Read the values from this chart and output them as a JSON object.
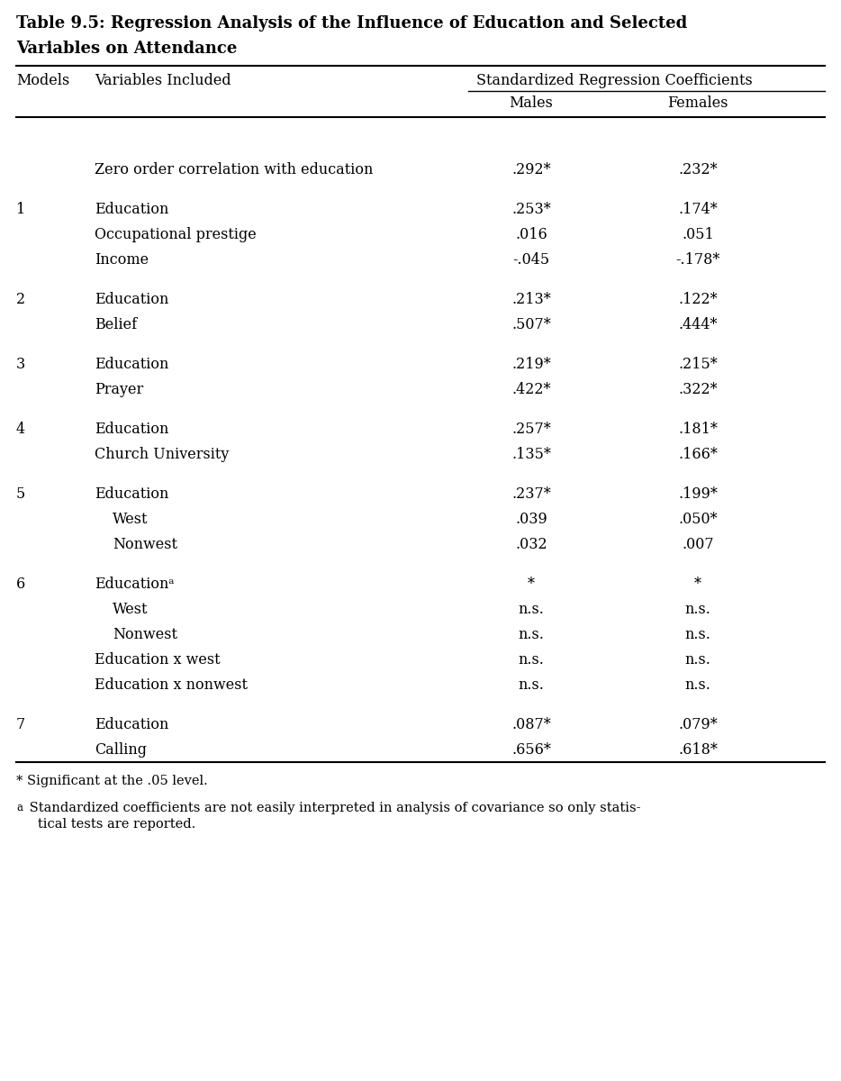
{
  "title_line1": "Table 9.5: Regression Analysis of the Influence of Education and Selected",
  "title_line2": "Variables on Attendance",
  "span_header": "Standardized Regression Coefficients",
  "col_models": "Models",
  "col_vars": "Variables Included",
  "col_males": "Males",
  "col_females": "Females",
  "rows": [
    {
      "model": "",
      "variable": "Zero order correlation with education",
      "males": ".292*",
      "females": ".232*",
      "indent": 0,
      "gap_before": true
    },
    {
      "model": "1",
      "variable": "Education",
      "males": ".253*",
      "females": ".174*",
      "indent": 0,
      "gap_before": true
    },
    {
      "model": "",
      "variable": "Occupational prestige",
      "males": ".016",
      "females": ".051",
      "indent": 0,
      "gap_before": false
    },
    {
      "model": "",
      "variable": "Income",
      "males": "-.045",
      "females": "-.178*",
      "indent": 0,
      "gap_before": false
    },
    {
      "model": "2",
      "variable": "Education",
      "males": ".213*",
      "females": ".122*",
      "indent": 0,
      "gap_before": true
    },
    {
      "model": "",
      "variable": "Belief",
      "males": ".507*",
      "females": ".444*",
      "indent": 0,
      "gap_before": false
    },
    {
      "model": "3",
      "variable": "Education",
      "males": ".219*",
      "females": ".215*",
      "indent": 0,
      "gap_before": true
    },
    {
      "model": "",
      "variable": "Prayer",
      "males": ".422*",
      "females": ".322*",
      "indent": 0,
      "gap_before": false
    },
    {
      "model": "4",
      "variable": "Education",
      "males": ".257*",
      "females": ".181*",
      "indent": 0,
      "gap_before": true
    },
    {
      "model": "",
      "variable": "Church University",
      "males": ".135*",
      "females": ".166*",
      "indent": 0,
      "gap_before": false
    },
    {
      "model": "5",
      "variable": "Education",
      "males": ".237*",
      "females": ".199*",
      "indent": 0,
      "gap_before": true
    },
    {
      "model": "",
      "variable": "West",
      "males": ".039",
      "females": ".050*",
      "indent": 1,
      "gap_before": false
    },
    {
      "model": "",
      "variable": "Nonwest",
      "males": ".032",
      "females": ".007",
      "indent": 1,
      "gap_before": false
    },
    {
      "model": "6",
      "variable": "Educationᵃ",
      "males": "*",
      "females": "*",
      "indent": 0,
      "gap_before": true
    },
    {
      "model": "",
      "variable": "West",
      "males": "n.s.",
      "females": "n.s.",
      "indent": 1,
      "gap_before": false
    },
    {
      "model": "",
      "variable": "Nonwest",
      "males": "n.s.",
      "females": "n.s.",
      "indent": 1,
      "gap_before": false
    },
    {
      "model": "",
      "variable": "Education x west",
      "males": "n.s.",
      "females": "n.s.",
      "indent": 0,
      "gap_before": false
    },
    {
      "model": "",
      "variable": "Education x nonwest",
      "males": "n.s.",
      "females": "n.s.",
      "indent": 0,
      "gap_before": false
    },
    {
      "model": "7",
      "variable": "Education",
      "males": ".087*",
      "females": ".079*",
      "indent": 0,
      "gap_before": true
    },
    {
      "model": "",
      "variable": "Calling",
      "males": ".656*",
      "females": ".618*",
      "indent": 0,
      "gap_before": false
    }
  ],
  "footnote1": "* Significant at the .05 level.",
  "footnote2a": "a",
  "footnote2b": "  Standardized coefficients are not easily interpreted in analysis of covariance so only statis-\n   tical tests are reported.",
  "bg_color": "#ffffff",
  "text_color": "#000000",
  "font_size": 11.5,
  "title_font_size": 13
}
